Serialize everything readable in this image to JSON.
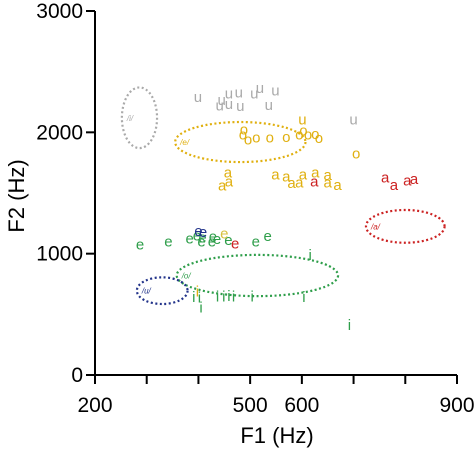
{
  "chart_data": {
    "type": "scatter",
    "xlabel": "F1 (Hz)",
    "ylabel": "F2 (Hz)",
    "xlim": [
      200,
      900
    ],
    "ylim": [
      0,
      3000
    ],
    "x_ticks": [
      200,
      300,
      400,
      500,
      600,
      700,
      800,
      900
    ],
    "x_tick_labels": [
      "200",
      "500",
      "600",
      "900"
    ],
    "x_tick_label_values": [
      200,
      500,
      600,
      900
    ],
    "y_ticks": [
      0,
      1000,
      2000,
      3000
    ],
    "y_tick_labels": [
      "0",
      "1000",
      "2000",
      "3000"
    ],
    "grid": false,
    "series": [
      {
        "symbol": "u",
        "color": "#aaaaaa",
        "points": [
          [
            399,
            2293
          ],
          [
            445,
            2268
          ],
          [
            459,
            2318
          ],
          [
            478,
            2330
          ],
          [
            519,
            2366
          ],
          [
            508,
            2318
          ],
          [
            481,
            2215
          ],
          [
            459,
            2235
          ],
          [
            441,
            2223
          ],
          [
            536,
            2227
          ],
          [
            549,
            2346
          ],
          [
            700,
            2104
          ]
        ]
      },
      {
        "symbol": "u",
        "color": "#e0b010",
        "points": [
          [
            601,
            2104
          ]
        ]
      },
      {
        "symbol": "o",
        "color": "#e0b010",
        "points": [
          [
            488,
            2022
          ],
          [
            486,
            1981
          ],
          [
            496,
            1940
          ],
          [
            512,
            1956
          ],
          [
            538,
            1956
          ],
          [
            570,
            1960
          ],
          [
            595,
            1981
          ],
          [
            603,
            2014
          ],
          [
            612,
            1981
          ],
          [
            626,
            1985
          ],
          [
            633,
            1952
          ],
          [
            705,
            1825
          ]
        ]
      },
      {
        "symbol": "a",
        "color": "#e0b010",
        "points": [
          [
            457,
            1669
          ],
          [
            459,
            1594
          ],
          [
            446,
            1562
          ],
          [
            549,
            1652
          ],
          [
            570,
            1636
          ],
          [
            580,
            1582
          ],
          [
            602,
            1652
          ],
          [
            595,
            1587
          ],
          [
            626,
            1668
          ],
          [
            650,
            1648
          ],
          [
            650,
            1587
          ],
          [
            669,
            1566
          ]
        ]
      },
      {
        "symbol": "a",
        "color": "#cc2222",
        "points": [
          [
            624,
            1595
          ],
          [
            761,
            1627
          ],
          [
            778,
            1566
          ],
          [
            804,
            1603
          ],
          [
            817,
            1615
          ]
        ]
      },
      {
        "symbol": "e",
        "color": "#2e9e4a",
        "points": [
          [
            287,
            1074
          ],
          [
            342,
            1099
          ],
          [
            383,
            1124
          ],
          [
            397,
            1148
          ],
          [
            408,
            1132
          ],
          [
            406,
            1099
          ],
          [
            426,
            1099
          ],
          [
            428,
            1140
          ],
          [
            436,
            1120
          ],
          [
            458,
            1111
          ],
          [
            511,
            1099
          ],
          [
            534,
            1144
          ]
        ]
      },
      {
        "symbol": "e",
        "color": "#22338a",
        "points": [
          [
            400,
            1185
          ],
          [
            409,
            1177
          ]
        ]
      },
      {
        "symbol": "e",
        "color": "#cc2222",
        "points": [
          [
            471,
            1083
          ]
        ]
      },
      {
        "symbol": "e",
        "color": "#d7c040",
        "points": [
          [
            450,
            1165
          ]
        ]
      },
      {
        "symbol": "i",
        "color": "#2e9e4a",
        "points": [
          [
            391,
            644
          ],
          [
            402,
            639
          ],
          [
            405,
            555
          ],
          [
            437,
            648
          ],
          [
            449,
            648
          ],
          [
            459,
            652
          ],
          [
            468,
            648
          ],
          [
            504,
            648
          ],
          [
            604,
            644
          ],
          [
            616,
            987
          ],
          [
            692,
            414
          ]
        ]
      },
      {
        "symbol": "i",
        "color": "#e0b010",
        "points": [
          [
            398,
            690
          ]
        ]
      }
    ],
    "ellipses": [
      {
        "label": "/i/",
        "color": "#aaaaaa",
        "cx": 286,
        "cy": 2120,
        "rx": 34,
        "ry": 250
      },
      {
        "label": "/e/",
        "color": "#e0b010",
        "cx": 481,
        "cy": 1920,
        "rx": 126,
        "ry": 165
      },
      {
        "label": "/a/",
        "color": "#cc2222",
        "cx": 800,
        "cy": 1225,
        "rx": 76,
        "ry": 135
      },
      {
        "label": "/o/",
        "color": "#2e9e4a",
        "cx": 514,
        "cy": 820,
        "rx": 156,
        "ry": 170
      },
      {
        "label": "/u/",
        "color": "#22338a",
        "cx": 330,
        "cy": 695,
        "rx": 49,
        "ry": 110
      }
    ]
  }
}
